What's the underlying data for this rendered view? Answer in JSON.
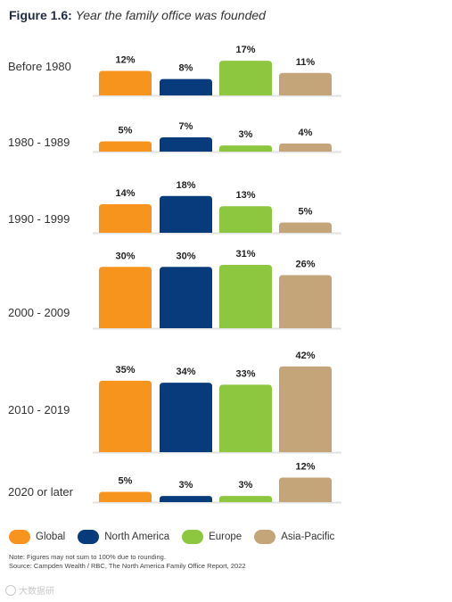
{
  "figure": {
    "label": "Figure 1.6:",
    "title": "Year the family office was founded"
  },
  "chart_data": {
    "type": "bar",
    "title": "Year the family office was founded",
    "series": [
      {
        "name": "Global",
        "color": "#f7941d",
        "values": [
          12,
          5,
          14,
          30,
          35,
          5
        ]
      },
      {
        "name": "North America",
        "color": "#083b7c",
        "values": [
          8,
          7,
          18,
          30,
          34,
          3
        ]
      },
      {
        "name": "Europe",
        "color": "#8dc63f",
        "values": [
          17,
          3,
          13,
          31,
          33,
          3
        ]
      },
      {
        "name": "Asia-Pacific",
        "color": "#c4a57a",
        "values": [
          11,
          4,
          5,
          26,
          42,
          12
        ]
      }
    ],
    "categories": [
      "Before 1980",
      "1980 - 1989",
      "1990 - 1999",
      "2000 - 2009",
      "2010 - 2019",
      "2020 or later"
    ],
    "value_suffix": "%",
    "legend_position": "bottom"
  },
  "legend": [
    {
      "label": "Global",
      "color": "#f7941d"
    },
    {
      "label": "North America",
      "color": "#083b7c"
    },
    {
      "label": "Europe",
      "color": "#8dc63f"
    },
    {
      "label": "Asia-Pacific",
      "color": "#c4a57a"
    }
  ],
  "notes": {
    "note": "Note: Figures may not sum to 100% due to rounding.",
    "source": "Source: Campden Wealth / RBC, The North America Family Office Report, 2022"
  },
  "watermark": "大数据研"
}
